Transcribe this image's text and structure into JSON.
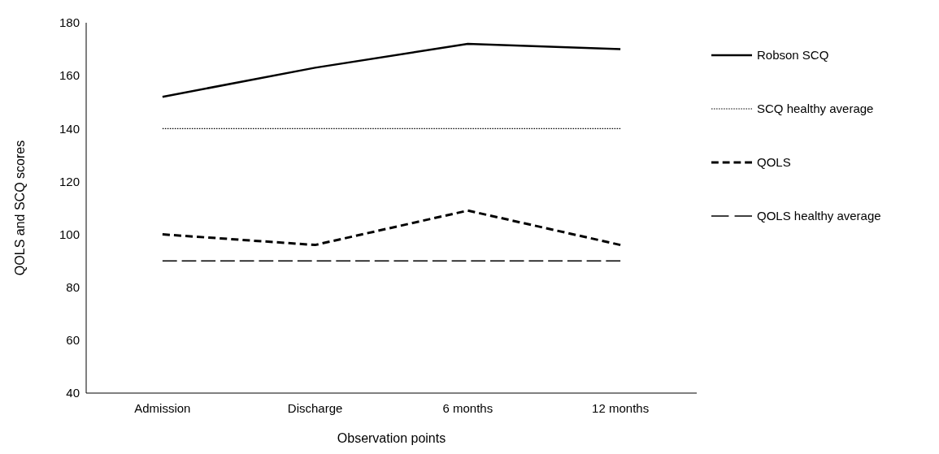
{
  "chart_data": {
    "type": "line",
    "xlabel": "Observation points",
    "ylabel": "QOLS and SCQ scores",
    "categories": [
      "Admission",
      "Discharge",
      "6 months",
      "12 months"
    ],
    "series": [
      {
        "name": "Robson SCQ",
        "color": "#000000",
        "line_style": "solid",
        "values": [
          152,
          163,
          172,
          170
        ]
      },
      {
        "name": "SCQ healthy average",
        "color": "#000000",
        "line_style": "dotted",
        "values": [
          140,
          140,
          140,
          140
        ]
      },
      {
        "name": "QOLS",
        "color": "#000000",
        "line_style": "dashed",
        "values": [
          100,
          96,
          109,
          96
        ]
      },
      {
        "name": "QOLS healthy average",
        "color": "#000000",
        "line_style": "dashed",
        "values": [
          90,
          90,
          90,
          90
        ]
      }
    ],
    "ylim": [
      40,
      180
    ],
    "yticks": [
      40,
      60,
      80,
      100,
      120,
      140,
      160,
      180
    ],
    "grid": false,
    "legend": "right",
    "marker": "none"
  }
}
